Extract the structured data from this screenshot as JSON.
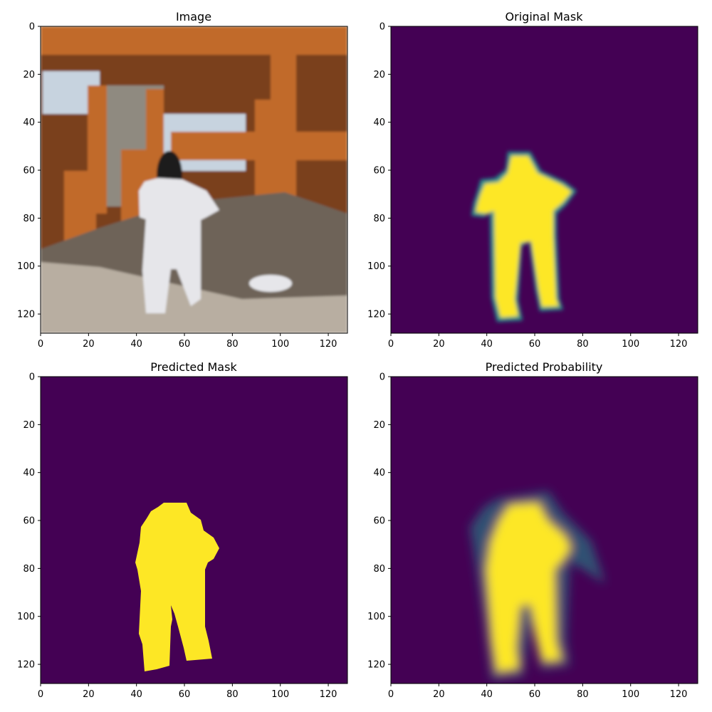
{
  "figure": {
    "panels": [
      {
        "id": "image",
        "title": "Image",
        "kind": "photo",
        "colors": {
          "sky": "#c7d3df",
          "wood": "#c16a2c",
          "wood_dark": "#7a3f1c",
          "stone": "#8f8a80",
          "ground": "#b8aea1",
          "rocks": "#6e6459",
          "person": "#e6e6ea",
          "hair": "#1c1a1c"
        }
      },
      {
        "id": "original-mask",
        "title": "Original Mask",
        "kind": "mask-soft"
      },
      {
        "id": "predicted-mask",
        "title": "Predicted Mask",
        "kind": "mask-hard"
      },
      {
        "id": "predicted-probability",
        "title": "Predicted Probability",
        "kind": "probability"
      }
    ],
    "colormap": {
      "low": "#440154",
      "mid": "#21918c",
      "high": "#fde725"
    }
  },
  "chart_data": [
    {
      "type": "heatmap",
      "title": "Image",
      "xlabel": "",
      "ylabel": "",
      "xlim": [
        0,
        128
      ],
      "ylim": [
        128,
        0
      ],
      "xticks": [
        0,
        20,
        40,
        60,
        80,
        100,
        120
      ],
      "yticks": [
        0,
        20,
        40,
        60,
        80,
        100,
        120
      ],
      "xtick_labels": [
        "0",
        "20",
        "40",
        "60",
        "80",
        "100",
        "120"
      ],
      "ytick_labels": [
        "0",
        "20",
        "40",
        "60",
        "80",
        "100",
        "120"
      ]
    },
    {
      "type": "heatmap",
      "title": "Original Mask",
      "xlabel": "",
      "ylabel": "",
      "xlim": [
        0,
        128
      ],
      "ylim": [
        128,
        0
      ],
      "xticks": [
        0,
        20,
        40,
        60,
        80,
        100,
        120
      ],
      "yticks": [
        0,
        20,
        40,
        60,
        80,
        100,
        120
      ],
      "xtick_labels": [
        "0",
        "20",
        "40",
        "60",
        "80",
        "100",
        "120"
      ],
      "ytick_labels": [
        "0",
        "20",
        "40",
        "60",
        "80",
        "100",
        "120"
      ]
    },
    {
      "type": "heatmap",
      "title": "Predicted Mask",
      "xlabel": "",
      "ylabel": "",
      "xlim": [
        0,
        128
      ],
      "ylim": [
        128,
        0
      ],
      "xticks": [
        0,
        20,
        40,
        60,
        80,
        100,
        120
      ],
      "yticks": [
        0,
        20,
        40,
        60,
        80,
        100,
        120
      ],
      "xtick_labels": [
        "0",
        "20",
        "40",
        "60",
        "80",
        "100",
        "120"
      ],
      "ytick_labels": [
        "0",
        "20",
        "40",
        "60",
        "80",
        "100",
        "120"
      ]
    },
    {
      "type": "heatmap",
      "title": "Predicted Probability",
      "xlabel": "",
      "ylabel": "",
      "xlim": [
        0,
        128
      ],
      "ylim": [
        128,
        0
      ],
      "xticks": [
        0,
        20,
        40,
        60,
        80,
        100,
        120
      ],
      "yticks": [
        0,
        20,
        40,
        60,
        80,
        100,
        120
      ],
      "xtick_labels": [
        "0",
        "20",
        "40",
        "60",
        "80",
        "100",
        "120"
      ],
      "ytick_labels": [
        "0",
        "20",
        "40",
        "60",
        "80",
        "100",
        "120"
      ]
    }
  ]
}
